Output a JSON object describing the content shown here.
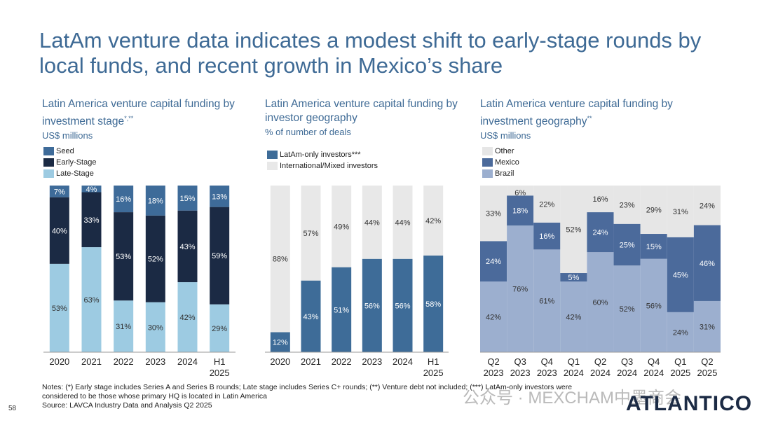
{
  "title": "LatAm venture data indicates a modest shift to early-stage rounds by local funds, and recent growth in Mexico’s share",
  "page_number": "58",
  "notes": "Notes: (*) Early stage includes Series A and Series B rounds; Late stage includes Series C+ rounds; (**) Venture debt not included; (***) LatAm-only investors were considered to be those whose primary HQ is located in Latin America",
  "source": "Source: LAVCA Industry Data and Analysis Q2 2025",
  "logo": "ATLANTICO",
  "watermark": "公众号 · MEXCHAM中墨商会",
  "chart_data": [
    {
      "type": "bar",
      "stacked": true,
      "title": "Latin America venture capital funding by investment stage",
      "title_suffix": "*,**",
      "subtitle": "US$ millions",
      "categories": [
        "2020",
        "2021",
        "2022",
        "2023",
        "2024",
        "H1 2025"
      ],
      "series": [
        {
          "name": "Late-Stage",
          "color": "#9dcbe2",
          "label_color": "#333",
          "values": [
            53,
            63,
            31,
            30,
            42,
            29
          ]
        },
        {
          "name": "Early-Stage",
          "color": "#1b2a44",
          "label_color": "#fff",
          "values": [
            40,
            33,
            53,
            52,
            43,
            59
          ]
        },
        {
          "name": "Seed",
          "color": "#3e6b99",
          "label_color": "#fff",
          "values": [
            7,
            4,
            16,
            18,
            15,
            13
          ]
        }
      ],
      "legend_order": [
        "Seed",
        "Early-Stage",
        "Late-Stage"
      ],
      "unit": "%"
    },
    {
      "type": "bar",
      "stacked": true,
      "title": "Latin America venture capital funding by investor geography",
      "subtitle": "% of number of deals",
      "categories": [
        "2020",
        "2021",
        "2022",
        "2023",
        "2024",
        "H1 2025"
      ],
      "series": [
        {
          "name": "LatAm-only investors***",
          "color": "#3e6c98",
          "label_color": "#fff",
          "values": [
            12,
            43,
            51,
            56,
            56,
            58
          ]
        },
        {
          "name": "International/Mixed investors",
          "color": "#e8e8e8",
          "label_color": "#333",
          "values": [
            88,
            57,
            49,
            44,
            44,
            42
          ]
        }
      ],
      "legend_order": [
        "LatAm-only investors***",
        "International/Mixed investors"
      ],
      "unit": "%"
    },
    {
      "type": "area",
      "stacked": true,
      "step": true,
      "title": "Latin America venture capital funding by investment geography",
      "title_suffix": "**",
      "subtitle": "US$ millions",
      "categories": [
        "Q2 2023",
        "Q3 2023",
        "Q4 2023",
        "Q1 2024",
        "Q2 2024",
        "Q3 2024",
        "Q4 2024",
        "Q1 2025",
        "Q2 2025"
      ],
      "series": [
        {
          "name": "Brazil",
          "color": "#9cafcf",
          "label_color": "#333",
          "values": [
            42,
            76,
            61,
            42,
            60,
            52,
            56,
            24,
            31
          ]
        },
        {
          "name": "Mexico",
          "color": "#4b6a9b",
          "label_color": "#fff",
          "values": [
            24,
            18,
            16,
            5,
            24,
            25,
            15,
            45,
            46
          ]
        },
        {
          "name": "Other",
          "color": "#e6e6e6",
          "label_color": "#333",
          "values": [
            33,
            6,
            22,
            52,
            16,
            23,
            29,
            31,
            24
          ]
        }
      ],
      "legend_order": [
        "Other",
        "Mexico",
        "Brazil"
      ],
      "unit": "%"
    }
  ]
}
